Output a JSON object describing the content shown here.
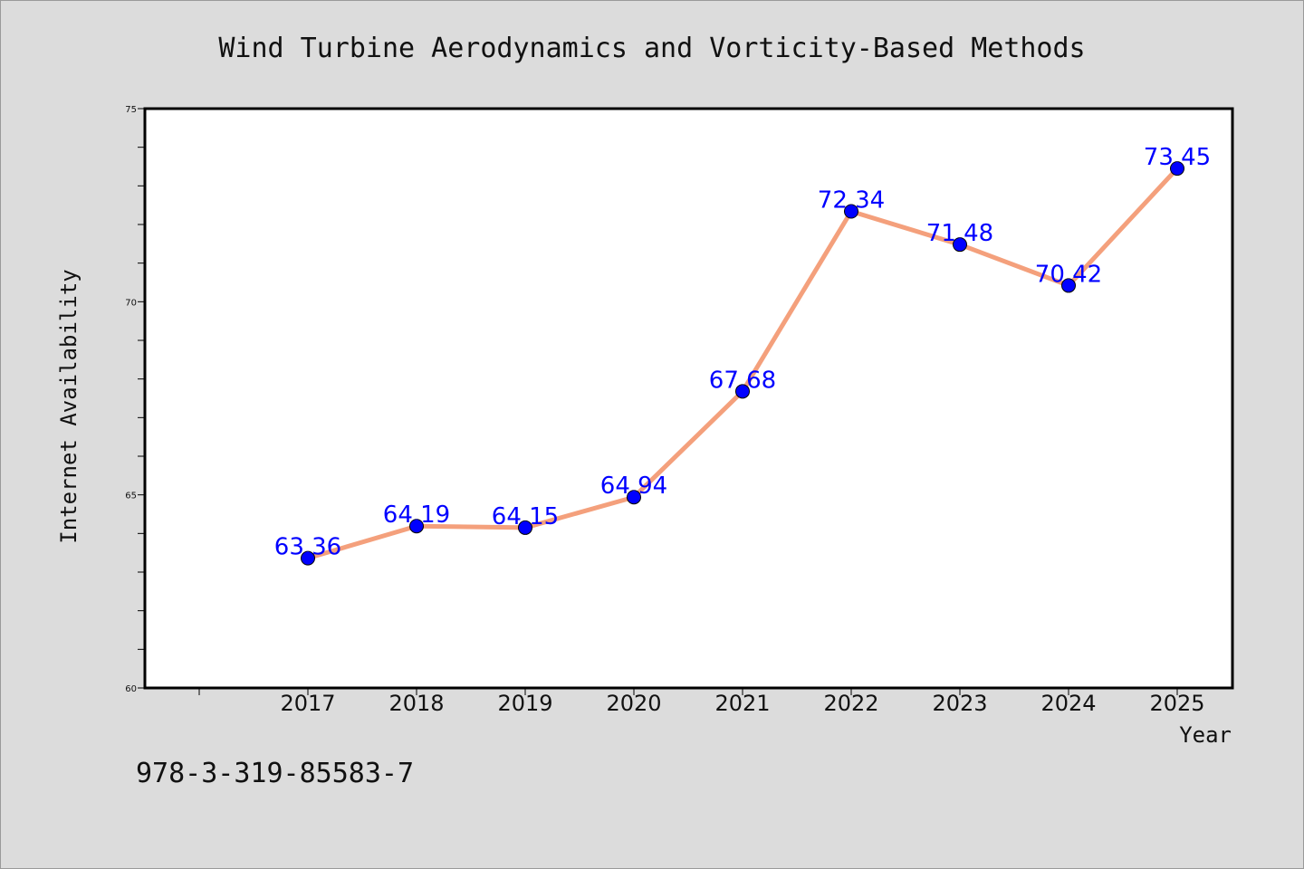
{
  "chart_data": {
    "type": "line",
    "title": "Wind Turbine Aerodynamics and Vorticity-Based Methods",
    "xlabel": "Year",
    "ylabel": "Internet Availability",
    "x": [
      "2017",
      "2018",
      "2019",
      "2020",
      "2021",
      "2022",
      "2023",
      "2024",
      "2025"
    ],
    "series": [
      {
        "values": [
          63.36,
          64.19,
          64.15,
          64.94,
          67.68,
          72.34,
          71.48,
          70.42,
          73.45
        ],
        "labels": [
          "63.36",
          "64.19",
          "64.15",
          "64.94",
          "67.68",
          "72.34",
          "71.48",
          "70.42",
          "73.45"
        ],
        "line_color": "#f4a07c",
        "marker_color": "#0000ff"
      }
    ],
    "ylim": [
      60,
      75
    ],
    "yticks": [
      "60",
      "65",
      "70",
      "75"
    ],
    "grid": false,
    "legend": "none"
  },
  "footer": {
    "text": "978-3-319-85583-7"
  },
  "colors": {
    "background": "#dcdcdc",
    "plot_background": "#ffffff",
    "line": "#f4a07c",
    "marker": "#0000ff",
    "data_label": "#0000ff"
  }
}
